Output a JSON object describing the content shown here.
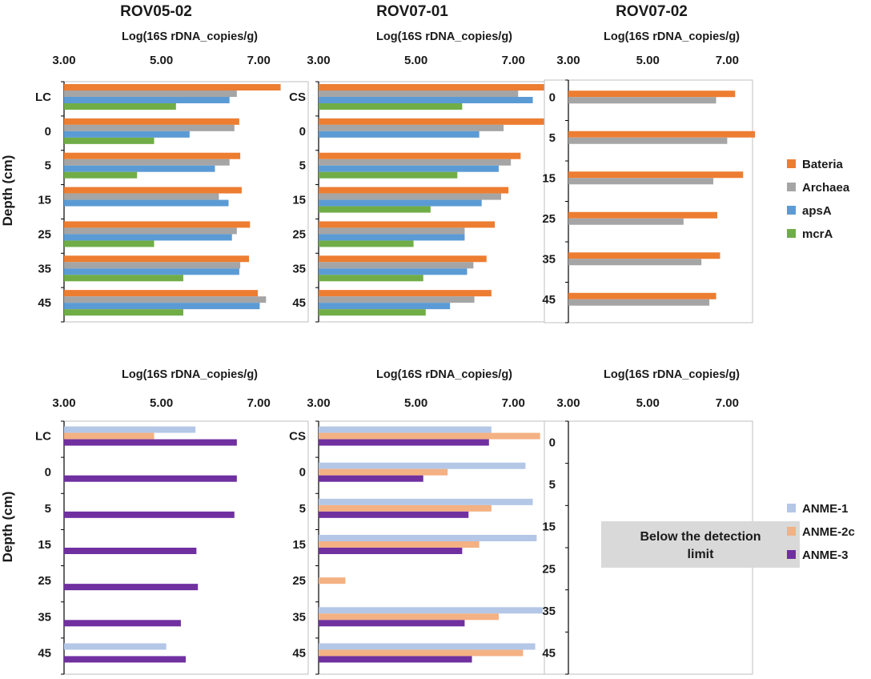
{
  "column_titles": [
    "ROV05-02",
    "ROV07-01",
    "ROV07-02"
  ],
  "axis_title": "Log(16S rDNA_copies/g)",
  "tick_labels": [
    "3.00",
    "5.00",
    "7.00"
  ],
  "ylabel": "Depth (cm)",
  "colors": {
    "Bateria": "#ED7D31",
    "Archaea": "#A5A5A5",
    "apsA": "#5B9BD5",
    "mcrA": "#70AD47",
    "ANME-1": "#B4C7E7",
    "ANME-2c": "#F4B183",
    "ANME-3": "#7030A0"
  },
  "legends": {
    "top": [
      "Bateria",
      "Archaea",
      "apsA",
      "mcrA"
    ],
    "bottom": [
      "ANME-1",
      "ANME-2c",
      "ANME-3"
    ]
  },
  "note": {
    "line1": "Below the detection",
    "line2": "limit"
  },
  "chart_data": [
    {
      "id": "top-rov05-02",
      "type": "bar",
      "orientation": "horizontal",
      "title": "ROV05-02",
      "xlabel": "Log(16S rDNA_copies/g)",
      "ylabel": "Depth (cm)",
      "xlim": [
        3,
        8
      ],
      "categories": [
        "LC",
        "0",
        "5",
        "15",
        "25",
        "35",
        "45"
      ],
      "series": [
        {
          "name": "Bateria",
          "values": [
            7.45,
            6.6,
            6.62,
            6.65,
            6.82,
            6.8,
            6.98
          ]
        },
        {
          "name": "Archaea",
          "values": [
            6.55,
            6.5,
            6.4,
            6.18,
            6.55,
            6.62,
            7.15
          ]
        },
        {
          "name": "apsA",
          "values": [
            6.4,
            5.58,
            6.1,
            6.38,
            6.45,
            6.6,
            7.02
          ]
        },
        {
          "name": "mcrA",
          "values": [
            5.3,
            4.85,
            4.5,
            null,
            4.85,
            5.45,
            5.45
          ]
        }
      ]
    },
    {
      "id": "top-rov07-01",
      "type": "bar",
      "orientation": "horizontal",
      "title": "ROV07-01",
      "xlabel": "Log(16S rDNA_copies/g)",
      "xlim": [
        3,
        8
      ],
      "categories": [
        "CS",
        "0",
        "5",
        "15",
        "25",
        "35",
        "45"
      ],
      "series": [
        {
          "name": "Bateria",
          "values": [
            7.8,
            7.68,
            7.15,
            6.9,
            6.62,
            6.45,
            6.55
          ]
        },
        {
          "name": "Archaea",
          "values": [
            7.1,
            6.8,
            6.95,
            6.75,
            6.0,
            6.18,
            6.2
          ]
        },
        {
          "name": "apsA",
          "values": [
            7.4,
            6.3,
            6.7,
            6.35,
            6.0,
            6.05,
            5.7
          ]
        },
        {
          "name": "mcrA",
          "values": [
            5.95,
            null,
            5.85,
            5.3,
            4.95,
            5.15,
            5.2
          ]
        }
      ]
    },
    {
      "id": "top-rov07-02",
      "type": "bar",
      "orientation": "horizontal",
      "title": "ROV07-02",
      "xlabel": "Log(16S rDNA_copies/g)",
      "xlim": [
        3,
        8
      ],
      "categories": [
        "0",
        "5",
        "15",
        "25",
        "35",
        "45"
      ],
      "series": [
        {
          "name": "Bateria",
          "values": [
            7.2,
            7.7,
            7.4,
            6.75,
            6.82,
            6.72
          ]
        },
        {
          "name": "Archaea",
          "values": [
            6.72,
            7.0,
            6.65,
            5.9,
            6.35,
            6.55
          ]
        }
      ]
    },
    {
      "id": "bottom-rov05-02",
      "type": "bar",
      "orientation": "horizontal",
      "xlabel": "Log(16S rDNA_copies/g)",
      "ylabel": "Depth (cm)",
      "xlim": [
        3,
        8
      ],
      "categories": [
        "LC",
        "0",
        "5",
        "15",
        "25",
        "35",
        "45"
      ],
      "series": [
        {
          "name": "ANME-1",
          "values": [
            5.7,
            null,
            null,
            null,
            null,
            null,
            5.1
          ]
        },
        {
          "name": "ANME-2c",
          "values": [
            4.85,
            null,
            null,
            null,
            null,
            null,
            null
          ]
        },
        {
          "name": "ANME-3",
          "values": [
            6.55,
            6.55,
            6.5,
            5.72,
            5.75,
            5.4,
            5.5
          ]
        }
      ]
    },
    {
      "id": "bottom-rov07-01",
      "type": "bar",
      "orientation": "horizontal",
      "xlabel": "Log(16S rDNA_copies/g)",
      "xlim": [
        3,
        8
      ],
      "categories": [
        "CS",
        "0",
        "5",
        "15",
        "25",
        "35",
        "45"
      ],
      "series": [
        {
          "name": "ANME-1",
          "values": [
            6.55,
            7.25,
            7.4,
            7.48,
            null,
            7.6,
            7.45
          ]
        },
        {
          "name": "ANME-2c",
          "values": [
            7.55,
            5.65,
            6.55,
            6.3,
            3.55,
            6.7,
            7.2
          ]
        },
        {
          "name": "ANME-3",
          "values": [
            6.5,
            5.15,
            6.08,
            5.95,
            null,
            6.0,
            6.15
          ]
        }
      ]
    },
    {
      "id": "bottom-rov07-02",
      "type": "bar",
      "orientation": "horizontal",
      "xlabel": "Log(16S rDNA_copies/g)",
      "xlim": [
        3,
        8
      ],
      "categories": [
        "0",
        "5",
        "15",
        "25",
        "35",
        "45"
      ],
      "series": [],
      "annotation": "Below the detection limit"
    }
  ]
}
